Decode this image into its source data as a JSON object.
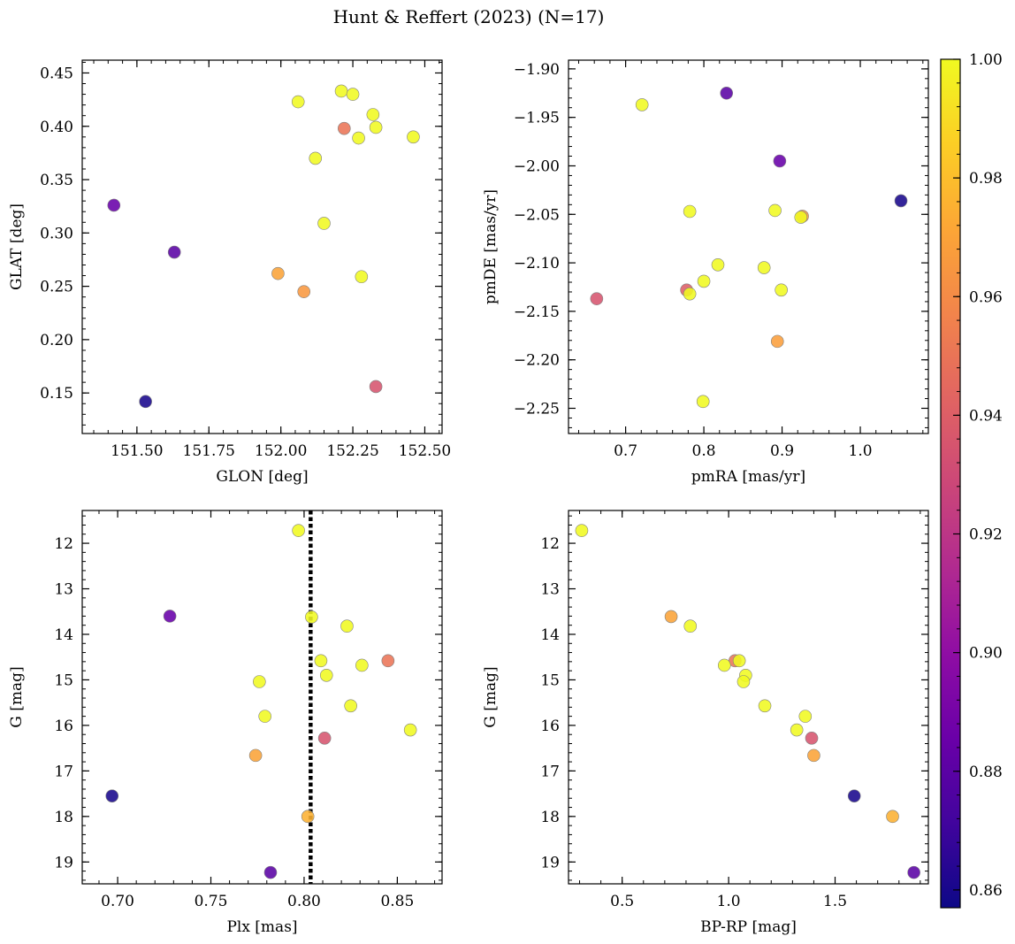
{
  "title": "Hunt & Reffert (2023) (N=17)",
  "colorbar": {
    "colormap": "plasma",
    "min": 0.857,
    "max": 1.0,
    "ticks": [
      0.86,
      0.88,
      0.9,
      0.92,
      0.94,
      0.96,
      0.98,
      1.0
    ],
    "tick_labels": [
      "0.86",
      "0.88",
      "0.90",
      "0.92",
      "0.94",
      "0.96",
      "0.98",
      "1.00"
    ]
  },
  "chart_data": [
    {
      "type": "scatter",
      "xlabel": "GLON [deg]",
      "ylabel": "GLAT [deg]",
      "xlim": [
        151.31,
        152.56
      ],
      "ylim": [
        0.112,
        0.462
      ],
      "y_inverted": false,
      "xticks": [
        151.5,
        151.75,
        152.0,
        152.25,
        152.5
      ],
      "xtick_labels": [
        "151.50",
        "151.75",
        "152.00",
        "152.25",
        "152.50"
      ],
      "yticks": [
        0.15,
        0.2,
        0.25,
        0.3,
        0.35,
        0.4,
        0.45
      ],
      "ytick_labels": [
        "0.15",
        "0.20",
        "0.25",
        "0.30",
        "0.35",
        "0.40",
        "0.45"
      ],
      "x": [
        151.42,
        151.63,
        151.53,
        152.06,
        152.12,
        152.15,
        152.21,
        152.25,
        152.22,
        152.27,
        152.32,
        152.33,
        152.46,
        151.99,
        152.08,
        152.28,
        152.33
      ],
      "y": [
        0.326,
        0.282,
        0.142,
        0.423,
        0.37,
        0.309,
        0.433,
        0.43,
        0.398,
        0.389,
        0.411,
        0.399,
        0.39,
        0.262,
        0.245,
        0.259,
        0.156
      ],
      "c": [
        0.885,
        0.88,
        0.86,
        1.0,
        1.0,
        1.0,
        1.0,
        1.0,
        0.95,
        1.0,
        1.0,
        1.0,
        1.0,
        0.97,
        0.965,
        1.0,
        0.935
      ]
    },
    {
      "type": "scatter",
      "xlabel": "pmRA [mas/yr]",
      "ylabel": "pmDE [mas/yr]",
      "xlim": [
        0.627,
        1.087
      ],
      "ylim": [
        -2.276,
        -1.891
      ],
      "y_inverted": false,
      "xticks": [
        0.7,
        0.8,
        0.9,
        1.0
      ],
      "xtick_labels": [
        "0.7",
        "0.8",
        "0.9",
        "1.0"
      ],
      "yticks": [
        -2.25,
        -2.2,
        -2.15,
        -2.1,
        -2.05,
        -2.0,
        -1.95,
        -1.9
      ],
      "ytick_labels": [
        "−2.25",
        "−2.20",
        "−2.15",
        "−2.10",
        "−2.05",
        "−2.00",
        "−1.95",
        "−1.90"
      ],
      "x": [
        0.721,
        0.829,
        0.897,
        1.052,
        0.782,
        0.891,
        0.926,
        0.924,
        0.663,
        0.778,
        0.782,
        0.8,
        0.818,
        0.877,
        0.899,
        0.894,
        0.799
      ],
      "y": [
        -1.937,
        -1.925,
        -1.995,
        -2.036,
        -2.047,
        -2.046,
        -2.052,
        -2.053,
        -2.137,
        -2.128,
        -2.132,
        -2.119,
        -2.102,
        -2.105,
        -2.128,
        -2.181,
        -2.243
      ],
      "c": [
        1.0,
        0.88,
        0.885,
        0.86,
        1.0,
        1.0,
        0.965,
        1.0,
        0.935,
        0.94,
        1.0,
        1.0,
        1.0,
        1.0,
        1.0,
        0.968,
        1.0
      ]
    },
    {
      "type": "scatter",
      "xlabel": "Plx [mas]",
      "ylabel": "G [mag]",
      "xlim": [
        0.681,
        0.874
      ],
      "ylim": [
        19.48,
        11.28
      ],
      "y_inverted": true,
      "xticks": [
        0.7,
        0.75,
        0.8,
        0.85
      ],
      "xtick_labels": [
        "0.70",
        "0.75",
        "0.80",
        "0.85"
      ],
      "yticks": [
        12,
        13,
        14,
        15,
        16,
        17,
        18,
        19
      ],
      "ytick_labels": [
        "12",
        "13",
        "14",
        "15",
        "16",
        "17",
        "18",
        "19"
      ],
      "vline": 0.8035,
      "x": [
        0.797,
        0.728,
        0.804,
        0.823,
        0.809,
        0.845,
        0.831,
        0.812,
        0.776,
        0.825,
        0.779,
        0.857,
        0.811,
        0.774,
        0.697,
        0.802,
        0.782
      ],
      "y": [
        11.72,
        13.6,
        13.62,
        13.82,
        14.58,
        14.58,
        14.68,
        14.9,
        15.04,
        15.57,
        15.8,
        16.1,
        16.28,
        16.66,
        17.55,
        18.0,
        19.23
      ],
      "c": [
        1.0,
        0.885,
        1.0,
        1.0,
        1.0,
        0.95,
        1.0,
        1.0,
        1.0,
        1.0,
        1.0,
        1.0,
        0.935,
        0.97,
        0.86,
        0.975,
        0.88
      ]
    },
    {
      "type": "scatter",
      "xlabel": "BP-RP [mag]",
      "ylabel": "G [mag]",
      "xlim": [
        0.248,
        1.938
      ],
      "ylim": [
        19.48,
        11.28
      ],
      "y_inverted": true,
      "xticks": [
        0.5,
        1.0,
        1.5
      ],
      "xtick_labels": [
        "0.5",
        "1.0",
        "1.5"
      ],
      "yticks": [
        12,
        13,
        14,
        15,
        16,
        17,
        18,
        19
      ],
      "ytick_labels": [
        "12",
        "13",
        "14",
        "15",
        "16",
        "17",
        "18",
        "19"
      ],
      "x": [
        0.31,
        0.73,
        0.82,
        1.03,
        1.05,
        0.98,
        1.08,
        1.07,
        1.17,
        1.36,
        1.32,
        1.39,
        1.4,
        1.59,
        1.77,
        1.87
      ],
      "y": [
        11.72,
        13.61,
        13.82,
        14.58,
        14.58,
        14.68,
        14.9,
        15.04,
        15.57,
        15.8,
        16.1,
        16.28,
        16.66,
        17.55,
        18.0,
        19.23
      ],
      "c": [
        1.0,
        0.97,
        1.0,
        0.95,
        1.0,
        1.0,
        1.0,
        1.0,
        1.0,
        1.0,
        1.0,
        0.935,
        0.97,
        0.86,
        0.975,
        0.88
      ]
    }
  ]
}
